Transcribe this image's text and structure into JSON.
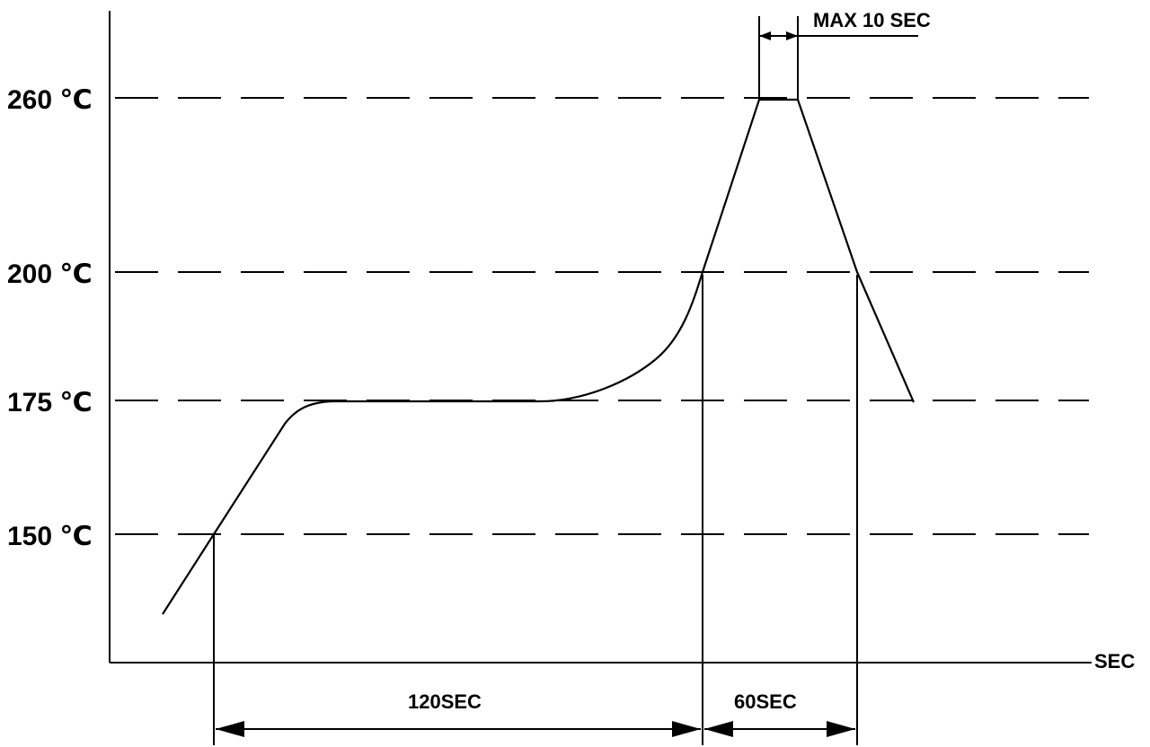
{
  "temperature_levels": [
    "260 ℃",
    "200 ℃",
    "175 ℃",
    "150 ℃"
  ],
  "x_axis_unit": "SEC",
  "peak_note": "MAX 10 SEC",
  "dimensions": {
    "preheat": "120SEC",
    "above_200": "60SEC"
  },
  "colors": {
    "line": "#000000",
    "background": "#ffffff"
  }
}
